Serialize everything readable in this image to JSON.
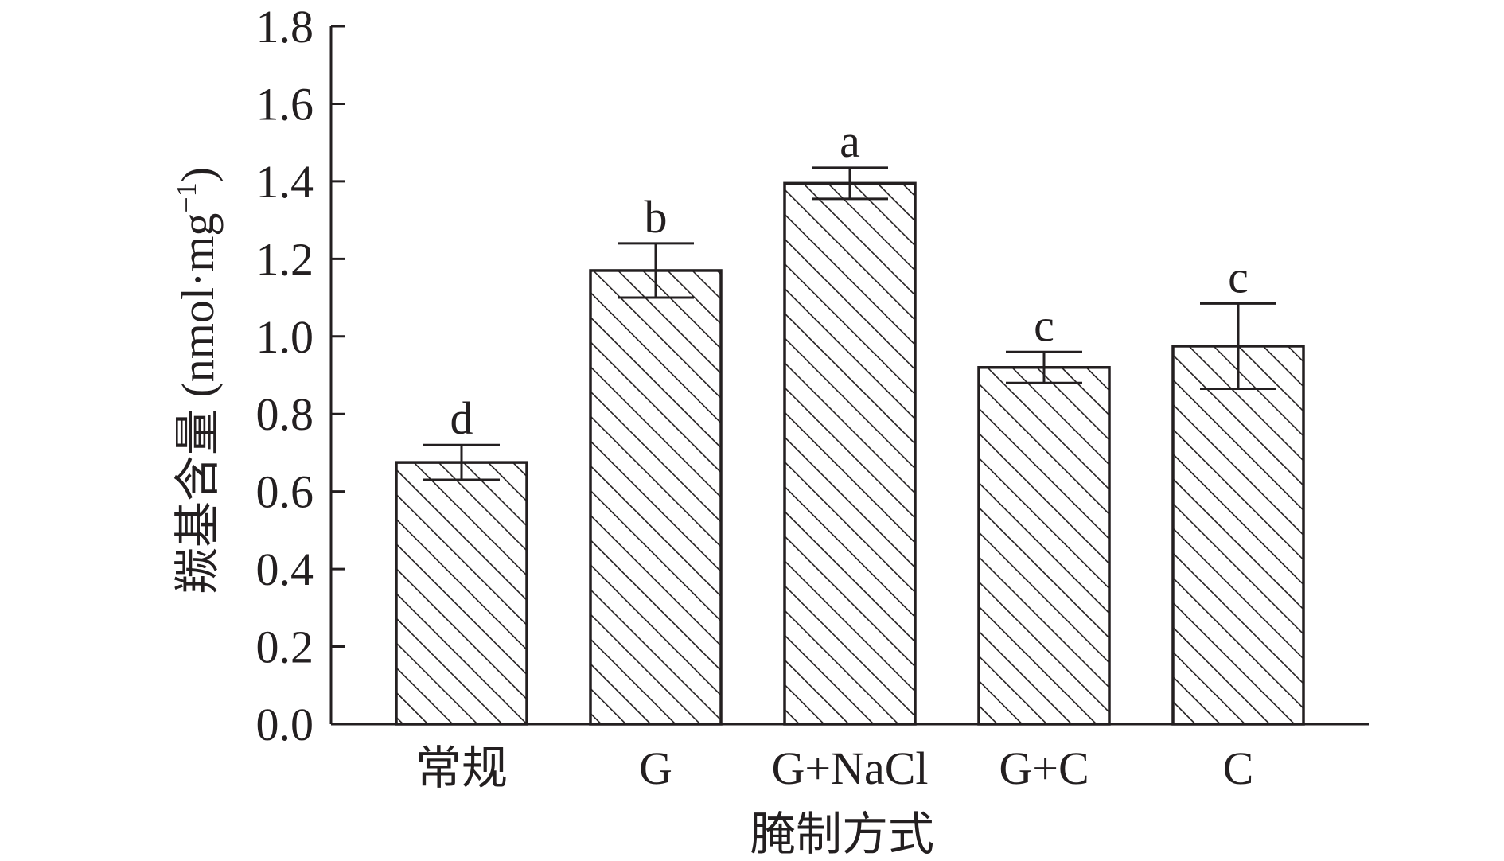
{
  "chart_data": {
    "type": "bar",
    "categories": [
      "常规",
      "G",
      "G+NaCl",
      "G+C",
      "C"
    ],
    "values": [
      0.675,
      1.17,
      1.395,
      0.92,
      0.975
    ],
    "errors": [
      0.045,
      0.07,
      0.04,
      0.04,
      0.11
    ],
    "significance": [
      "d",
      "b",
      "a",
      "c",
      "c"
    ],
    "xlabel": "腌制方式",
    "ylabel_main": "羰基含量 (nmol·mg",
    "ylabel_sup": "−1",
    "ylabel_close": ")",
    "ylim": [
      0,
      1.8
    ],
    "yticks": [
      "0.0",
      "0.2",
      "0.4",
      "0.6",
      "0.8",
      "1.0",
      "1.2",
      "1.4",
      "1.6",
      "1.8"
    ],
    "bar_fill": "hatched",
    "grid": false,
    "colors": {
      "ink": "#231f20",
      "background": "#ffffff"
    }
  }
}
